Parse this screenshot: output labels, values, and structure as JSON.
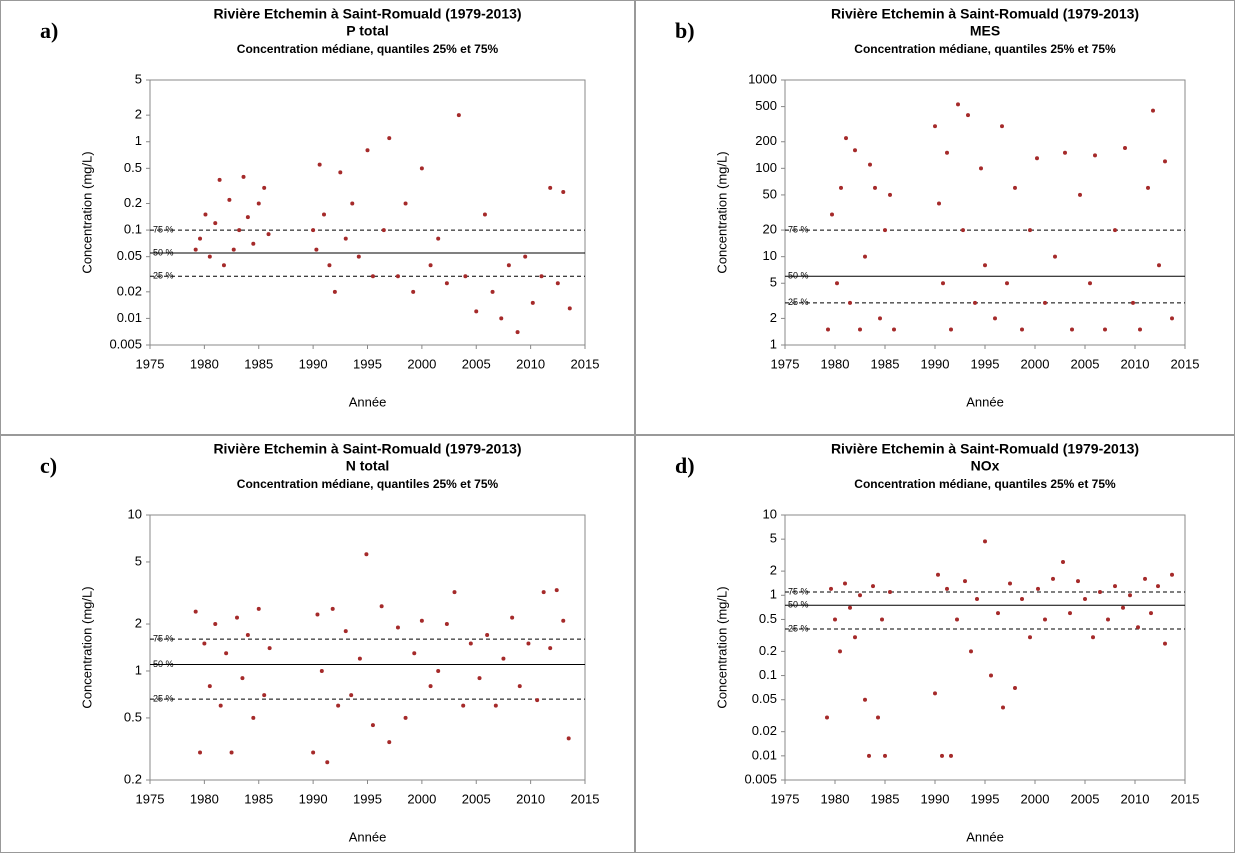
{
  "chart_data": [
    {
      "type": "scatter",
      "panel_label": "a)",
      "title": "Rivière Etchemin à Saint-Romuald (1979-2013)",
      "parameter": "P total",
      "subtitle": "Concentration médiane, quantiles 25% et 75%",
      "xlabel": "Année",
      "ylabel": "Concentration (mg/L)",
      "log_y": true,
      "color": "#a52a2a",
      "xlim": [
        1975,
        2015
      ],
      "xticks": [
        1975,
        1980,
        1985,
        1990,
        1995,
        2000,
        2005,
        2010,
        2015
      ],
      "ylim": [
        0.005,
        5
      ],
      "yticks": [
        0.005,
        0.01,
        0.02,
        0.05,
        0.1,
        0.2,
        0.5,
        1,
        2,
        5
      ],
      "hlines": [
        {
          "label": "75 %",
          "value": 0.1,
          "style": "dashed"
        },
        {
          "label": "50 %",
          "value": 0.055,
          "style": "solid"
        },
        {
          "label": "25 %",
          "value": 0.03,
          "style": "dashed"
        }
      ],
      "x": [
        1979.2,
        1979.6,
        1980.1,
        1980.5,
        1981.0,
        1981.4,
        1981.8,
        1982.3,
        1982.7,
        1983.2,
        1983.6,
        1984.0,
        1984.5,
        1985.0,
        1985.5,
        1985.9,
        1990.0,
        1990.3,
        1990.6,
        1991.0,
        1991.5,
        1992.0,
        1992.5,
        1993.0,
        1993.6,
        1994.2,
        1995.0,
        1995.5,
        1996.5,
        1997.0,
        1997.8,
        1998.5,
        1999.2,
        2000.0,
        2000.8,
        2001.5,
        2002.3,
        2003.4,
        2004.0,
        2005.0,
        2005.8,
        2006.5,
        2007.3,
        2008.0,
        2008.8,
        2009.5,
        2010.2,
        2011.0,
        2011.8,
        2012.5,
        2013.0,
        2013.6
      ],
      "values": [
        0.06,
        0.08,
        0.15,
        0.05,
        0.12,
        0.37,
        0.04,
        0.22,
        0.06,
        0.1,
        0.4,
        0.14,
        0.07,
        0.2,
        0.3,
        0.09,
        0.1,
        0.06,
        0.55,
        0.15,
        0.04,
        0.02,
        0.45,
        0.08,
        0.2,
        0.05,
        0.8,
        0.03,
        0.1,
        1.1,
        0.03,
        0.2,
        0.02,
        0.5,
        0.04,
        0.08,
        0.025,
        2.0,
        0.03,
        0.012,
        0.15,
        0.02,
        0.01,
        0.04,
        0.007,
        0.05,
        0.015,
        0.03,
        0.3,
        0.025,
        0.27,
        0.013
      ]
    },
    {
      "type": "scatter",
      "panel_label": "b)",
      "title": "Rivière Etchemin à Saint-Romuald (1979-2013)",
      "parameter": "MES",
      "subtitle": "Concentration médiane, quantiles 25% et 75%",
      "xlabel": "Année",
      "ylabel": "Concentration (mg/L)",
      "log_y": true,
      "color": "#a52a2a",
      "xlim": [
        1975,
        2015
      ],
      "xticks": [
        1975,
        1980,
        1985,
        1990,
        1995,
        2000,
        2005,
        2010,
        2015
      ],
      "ylim": [
        1,
        1000
      ],
      "yticks": [
        1,
        2,
        5,
        10,
        20,
        50,
        100,
        200,
        500,
        1000
      ],
      "hlines": [
        {
          "label": "75 %",
          "value": 20,
          "style": "dashed"
        },
        {
          "label": "50 %",
          "value": 6,
          "style": "solid"
        },
        {
          "label": "25 %",
          "value": 3,
          "style": "dashed"
        }
      ],
      "x": [
        1979.3,
        1979.7,
        1980.2,
        1980.6,
        1981.1,
        1981.5,
        1982.0,
        1982.5,
        1983.0,
        1983.5,
        1984.0,
        1984.5,
        1985.0,
        1985.5,
        1985.9,
        1990.0,
        1990.4,
        1990.8,
        1991.2,
        1991.6,
        1992.3,
        1992.8,
        1993.3,
        1994.0,
        1994.6,
        1995.0,
        1996.0,
        1996.7,
        1997.2,
        1998.0,
        1998.7,
        1999.5,
        2000.2,
        2001.0,
        2002.0,
        2003.0,
        2003.7,
        2004.5,
        2005.5,
        2006.0,
        2007.0,
        2008.0,
        2009.0,
        2009.8,
        2010.5,
        2011.3,
        2011.8,
        2012.4,
        2013.0,
        2013.7
      ],
      "values": [
        1.5,
        30,
        5,
        60,
        220,
        3,
        160,
        1.5,
        10,
        110,
        60,
        2,
        20,
        50,
        1.5,
        300,
        40,
        5,
        150,
        1.5,
        530,
        20,
        400,
        3,
        100,
        8,
        2,
        300,
        5,
        60,
        1.5,
        20,
        130,
        3,
        10,
        150,
        1.5,
        50,
        5,
        140,
        1.5,
        20,
        170,
        3,
        1.5,
        60,
        450,
        8,
        120,
        2
      ]
    },
    {
      "type": "scatter",
      "panel_label": "c)",
      "title": "Rivière Etchemin à Saint-Romuald (1979-2013)",
      "parameter": "N total",
      "subtitle": "Concentration médiane, quantiles 25% et 75%",
      "xlabel": "Année",
      "ylabel": "Concentration (mg/L)",
      "log_y": true,
      "color": "#a52a2a",
      "xlim": [
        1975,
        2015
      ],
      "xticks": [
        1975,
        1980,
        1985,
        1990,
        1995,
        2000,
        2005,
        2010,
        2015
      ],
      "ylim": [
        0.2,
        10
      ],
      "yticks": [
        0.2,
        0.5,
        1,
        2,
        5,
        10
      ],
      "hlines": [
        {
          "label": "75 %",
          "value": 1.6,
          "style": "dashed"
        },
        {
          "label": "50 %",
          "value": 1.1,
          "style": "solid"
        },
        {
          "label": "25 %",
          "value": 0.66,
          "style": "dashed"
        }
      ],
      "x": [
        1979.2,
        1979.6,
        1980.0,
        1980.5,
        1981.0,
        1981.5,
        1982.0,
        1982.5,
        1983.0,
        1983.5,
        1984.0,
        1984.5,
        1985.0,
        1985.5,
        1986.0,
        1990.0,
        1990.4,
        1990.8,
        1991.3,
        1991.8,
        1992.3,
        1993.0,
        1993.5,
        1994.3,
        1994.9,
        1995.5,
        1996.3,
        1997.0,
        1997.8,
        1998.5,
        1999.3,
        2000.0,
        2000.8,
        2001.5,
        2002.3,
        2003.0,
        2003.8,
        2004.5,
        2005.3,
        2006.0,
        2006.8,
        2007.5,
        2008.3,
        2009.0,
        2009.8,
        2010.6,
        2011.2,
        2011.8,
        2012.4,
        2013.0,
        2013.5
      ],
      "values": [
        2.4,
        0.3,
        1.5,
        0.8,
        2.0,
        0.6,
        1.3,
        0.3,
        2.2,
        0.9,
        1.7,
        0.5,
        2.5,
        0.7,
        1.4,
        0.3,
        2.3,
        1.0,
        0.26,
        2.5,
        0.6,
        1.8,
        0.7,
        1.2,
        5.6,
        0.45,
        2.6,
        0.35,
        1.9,
        0.5,
        1.3,
        2.1,
        0.8,
        1.0,
        2.0,
        3.2,
        0.6,
        1.5,
        0.9,
        1.7,
        0.6,
        1.2,
        2.2,
        0.8,
        1.5,
        0.65,
        3.2,
        1.4,
        3.3,
        2.1,
        0.37
      ]
    },
    {
      "type": "scatter",
      "panel_label": "d)",
      "title": "Rivière Etchemin à Saint-Romuald (1979-2013)",
      "parameter": "NOx",
      "subtitle": "Concentration médiane, quantiles 25% et 75%",
      "xlabel": "Année",
      "ylabel": "Concentration (mg/L)",
      "log_y": true,
      "color": "#a52a2a",
      "xlim": [
        1975,
        2015
      ],
      "xticks": [
        1975,
        1980,
        1985,
        1990,
        1995,
        2000,
        2005,
        2010,
        2015
      ],
      "ylim": [
        0.005,
        10
      ],
      "yticks": [
        0.005,
        0.01,
        0.02,
        0.05,
        0.1,
        0.2,
        0.5,
        1,
        2,
        5,
        10
      ],
      "hlines": [
        {
          "label": "75 %",
          "value": 1.1,
          "style": "dashed"
        },
        {
          "label": "50 %",
          "value": 0.75,
          "style": "solid"
        },
        {
          "label": "25 %",
          "value": 0.38,
          "style": "dashed"
        }
      ],
      "x": [
        1979.2,
        1979.6,
        1980.0,
        1980.5,
        1981.0,
        1981.5,
        1982.0,
        1982.5,
        1983.0,
        1983.4,
        1983.8,
        1984.3,
        1984.7,
        1985.0,
        1985.5,
        1990.0,
        1990.3,
        1990.7,
        1991.2,
        1991.6,
        1992.2,
        1993.0,
        1993.6,
        1994.2,
        1995.0,
        1995.6,
        1996.3,
        1996.8,
        1997.5,
        1998.0,
        1998.7,
        1999.5,
        2000.3,
        2001.0,
        2001.8,
        2002.8,
        2003.5,
        2004.3,
        2005.0,
        2005.8,
        2006.5,
        2007.3,
        2008.0,
        2008.8,
        2009.5,
        2010.3,
        2011.0,
        2011.6,
        2012.3,
        2013.0,
        2013.7
      ],
      "values": [
        0.03,
        1.2,
        0.5,
        0.2,
        1.4,
        0.7,
        0.3,
        1.0,
        0.05,
        0.01,
        1.3,
        0.03,
        0.5,
        0.01,
        1.1,
        0.06,
        1.8,
        0.01,
        1.2,
        0.01,
        0.5,
        1.5,
        0.2,
        0.9,
        4.7,
        0.1,
        0.6,
        0.04,
        1.4,
        0.07,
        0.9,
        0.3,
        1.2,
        0.5,
        1.6,
        2.6,
        0.6,
        1.5,
        0.9,
        0.3,
        1.1,
        0.5,
        1.3,
        0.7,
        1.0,
        0.4,
        1.6,
        0.6,
        1.3,
        0.25,
        1.8
      ]
    }
  ]
}
